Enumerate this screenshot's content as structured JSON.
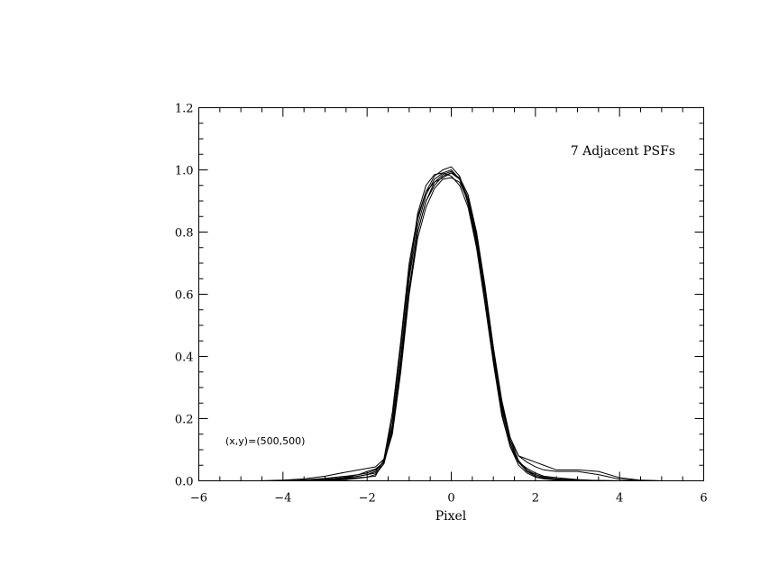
{
  "chart_data": {
    "type": "line",
    "title": "",
    "xlabel": "Pixel",
    "ylabel": "",
    "xlim": [
      -6,
      6
    ],
    "ylim": [
      0.0,
      1.2
    ],
    "x_ticks": [
      -6,
      -4,
      -2,
      0,
      2,
      4,
      6
    ],
    "x_tick_labels": [
      "−6",
      "−4",
      "−2",
      "0",
      "2",
      "4",
      "6"
    ],
    "y_ticks": [
      0.0,
      0.2,
      0.4,
      0.6,
      0.8,
      1.0,
      1.2
    ],
    "y_tick_labels": [
      "0.0",
      "0.2",
      "0.4",
      "0.6",
      "0.8",
      "1.0",
      "1.2"
    ],
    "grid": false,
    "annotations": [
      "7 Adjacent PSFs",
      "(x,y)=(500,500)"
    ],
    "series": [
      {
        "x": [
          -4.6,
          -4.0,
          -3.5,
          -3.0,
          -2.5,
          -2.2,
          -2.0,
          -1.8,
          -1.6,
          -1.4,
          -1.2,
          -1.0,
          -0.8,
          -0.6,
          -0.4,
          -0.2,
          0.0,
          0.2,
          0.4,
          0.6,
          0.8,
          1.0,
          1.2,
          1.4,
          1.6,
          1.8,
          2.0,
          2.2,
          2.5,
          3.0,
          3.5,
          4.0,
          4.5,
          5.0
        ],
        "y": [
          0.0,
          0.0,
          0.003,
          0.008,
          0.015,
          0.02,
          0.025,
          0.035,
          0.06,
          0.16,
          0.37,
          0.62,
          0.8,
          0.9,
          0.95,
          0.98,
          0.99,
          0.97,
          0.91,
          0.8,
          0.62,
          0.42,
          0.24,
          0.12,
          0.06,
          0.03,
          0.015,
          0.008,
          0.004,
          0.002,
          0.001,
          0.0,
          0.0,
          0.0
        ]
      },
      {
        "x": [
          -4.6,
          -4.0,
          -3.5,
          -3.0,
          -2.5,
          -2.2,
          -2.0,
          -1.8,
          -1.6,
          -1.4,
          -1.2,
          -1.0,
          -0.8,
          -0.6,
          -0.4,
          -0.2,
          0.0,
          0.2,
          0.4,
          0.6,
          0.8,
          1.0,
          1.2,
          1.4,
          1.6,
          1.8,
          2.0,
          2.2,
          2.5,
          3.0,
          3.5,
          4.0,
          4.5,
          5.0
        ],
        "y": [
          0.0,
          0.002,
          0.006,
          0.015,
          0.028,
          0.035,
          0.04,
          0.045,
          0.07,
          0.18,
          0.4,
          0.65,
          0.82,
          0.92,
          0.97,
          0.99,
          1.0,
          0.97,
          0.9,
          0.77,
          0.58,
          0.39,
          0.22,
          0.11,
          0.06,
          0.03,
          0.02,
          0.012,
          0.006,
          0.003,
          0.001,
          0.0,
          0.0,
          0.0
        ]
      },
      {
        "x": [
          -4.6,
          -4.0,
          -3.5,
          -3.0,
          -2.5,
          -2.2,
          -2.0,
          -1.8,
          -1.6,
          -1.4,
          -1.2,
          -1.0,
          -0.8,
          -0.6,
          -0.4,
          -0.2,
          0.0,
          0.2,
          0.4,
          0.6,
          0.8,
          1.0,
          1.2,
          1.4,
          1.6,
          1.8,
          2.0,
          2.2,
          2.5,
          3.0,
          3.5,
          4.0,
          4.5,
          5.0
        ],
        "y": [
          0.0,
          0.0,
          0.002,
          0.005,
          0.01,
          0.015,
          0.02,
          0.03,
          0.065,
          0.2,
          0.43,
          0.68,
          0.84,
          0.93,
          0.98,
          1.0,
          1.01,
          0.98,
          0.89,
          0.76,
          0.6,
          0.4,
          0.23,
          0.13,
          0.08,
          0.07,
          0.06,
          0.05,
          0.035,
          0.035,
          0.03,
          0.01,
          0.002,
          0.0
        ]
      },
      {
        "x": [
          -4.6,
          -4.0,
          -3.5,
          -3.0,
          -2.5,
          -2.2,
          -2.0,
          -1.8,
          -1.6,
          -1.4,
          -1.2,
          -1.0,
          -0.8,
          -0.6,
          -0.4,
          -0.2,
          0.0,
          0.2,
          0.4,
          0.6,
          0.8,
          1.0,
          1.2,
          1.4,
          1.6,
          1.8,
          2.0,
          2.2,
          2.5,
          3.0,
          3.5,
          4.0,
          4.5,
          5.0
        ],
        "y": [
          0.0,
          0.0,
          0.0,
          0.002,
          0.006,
          0.01,
          0.012,
          0.02,
          0.055,
          0.17,
          0.38,
          0.66,
          0.86,
          0.95,
          0.985,
          0.99,
          0.98,
          0.95,
          0.88,
          0.75,
          0.57,
          0.38,
          0.21,
          0.11,
          0.05,
          0.025,
          0.012,
          0.006,
          0.003,
          0.001,
          0.0,
          0.0,
          0.0,
          0.0
        ]
      },
      {
        "x": [
          -4.6,
          -4.0,
          -3.5,
          -3.0,
          -2.5,
          -2.2,
          -2.0,
          -1.8,
          -1.6,
          -1.4,
          -1.2,
          -1.0,
          -0.8,
          -0.6,
          -0.4,
          -0.2,
          0.0,
          0.2,
          0.4,
          0.6,
          0.8,
          1.0,
          1.2,
          1.4,
          1.6,
          1.8,
          2.0,
          2.2,
          2.5,
          3.0,
          3.5,
          4.0,
          4.5,
          5.0
        ],
        "y": [
          0.0,
          0.0,
          0.001,
          0.004,
          0.012,
          0.02,
          0.03,
          0.038,
          0.06,
          0.15,
          0.35,
          0.6,
          0.78,
          0.88,
          0.94,
          0.97,
          0.975,
          0.96,
          0.9,
          0.79,
          0.62,
          0.43,
          0.26,
          0.14,
          0.08,
          0.06,
          0.045,
          0.035,
          0.03,
          0.03,
          0.02,
          0.005,
          0.001,
          0.0
        ]
      },
      {
        "x": [
          -4.6,
          -4.0,
          -3.5,
          -3.0,
          -2.5,
          -2.2,
          -2.0,
          -1.8,
          -1.6,
          -1.4,
          -1.2,
          -1.0,
          -0.8,
          -0.6,
          -0.4,
          -0.2,
          0.0,
          0.2,
          0.4,
          0.6,
          0.8,
          1.0,
          1.2,
          1.4,
          1.6,
          1.8,
          2.0,
          2.2,
          2.5,
          3.0,
          3.5,
          4.0,
          4.5,
          5.0
        ],
        "y": [
          0.0,
          0.0,
          0.0,
          0.0,
          0.004,
          0.008,
          0.012,
          0.015,
          0.07,
          0.22,
          0.45,
          0.7,
          0.85,
          0.93,
          0.96,
          0.975,
          0.99,
          0.975,
          0.92,
          0.8,
          0.63,
          0.43,
          0.25,
          0.13,
          0.065,
          0.035,
          0.02,
          0.01,
          0.005,
          0.002,
          0.0,
          0.0,
          0.0,
          0.0
        ]
      },
      {
        "x": [
          -4.6,
          -4.0,
          -3.5,
          -3.0,
          -2.5,
          -2.2,
          -2.0,
          -1.8,
          -1.6,
          -1.4,
          -1.2,
          -1.0,
          -0.8,
          -0.6,
          -0.4,
          -0.2,
          0.0,
          0.2,
          0.4,
          0.6,
          0.8,
          1.0,
          1.2,
          1.4,
          1.6,
          1.8,
          2.0,
          2.2,
          2.5,
          3.0,
          3.5,
          4.0,
          4.5,
          5.0
        ],
        "y": [
          0.0,
          0.0,
          0.0,
          0.002,
          0.008,
          0.015,
          0.02,
          0.025,
          0.055,
          0.16,
          0.36,
          0.61,
          0.8,
          0.9,
          0.96,
          0.985,
          0.995,
          0.97,
          0.9,
          0.78,
          0.61,
          0.41,
          0.24,
          0.12,
          0.06,
          0.04,
          0.025,
          0.015,
          0.01,
          0.004,
          0.0,
          0.0,
          0.0,
          0.0
        ]
      }
    ]
  }
}
